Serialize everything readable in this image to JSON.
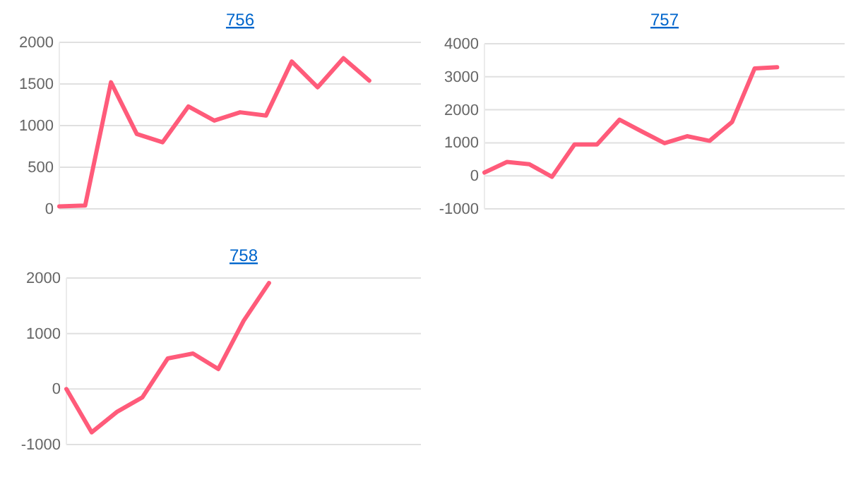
{
  "chart_data": [
    {
      "type": "line",
      "title": "756",
      "categories": [
        null,
        null,
        null,
        null,
        null,
        null,
        null,
        null,
        null,
        null,
        null,
        null,
        null,
        null,
        null
      ],
      "series": [
        {
          "color": "#ff5b7a",
          "values": [
            30,
            40,
            1520,
            900,
            800,
            1230,
            1060,
            1160,
            1120,
            1770,
            1460,
            1810,
            1540,
            null,
            null
          ]
        }
      ],
      "ylim": [
        0,
        2000
      ],
      "yticks": [
        0,
        500,
        1000,
        1500,
        2000
      ],
      "grid": "y",
      "tick_labels": "y",
      "marker": "none"
    },
    {
      "type": "line",
      "title": "757",
      "categories": [
        null,
        null,
        null,
        null,
        null,
        null,
        null,
        null,
        null,
        null,
        null,
        null,
        null,
        null,
        null,
        null,
        null
      ],
      "series": [
        {
          "color": "#ff5b7a",
          "values": [
            100,
            420,
            350,
            -30,
            950,
            950,
            1700,
            1340,
            990,
            1200,
            1060,
            1630,
            3250,
            3290,
            null,
            null,
            null
          ]
        }
      ],
      "ylim": [
        -1000,
        4000
      ],
      "yticks": [
        -1000,
        0,
        1000,
        2000,
        3000,
        4000
      ],
      "grid": "y",
      "tick_labels": "y",
      "marker": "none"
    },
    {
      "type": "line",
      "title": "758",
      "categories": [
        null,
        null,
        null,
        null,
        null,
        null,
        null,
        null,
        null,
        null,
        null,
        null,
        null,
        null,
        null
      ],
      "series": [
        {
          "color": "#ff5b7a",
          "values": [
            0,
            -780,
            -410,
            -150,
            550,
            640,
            360,
            1230,
            1910,
            null,
            null,
            null,
            null,
            null,
            null
          ]
        }
      ],
      "ylim": [
        -1000,
        2000
      ],
      "yticks": [
        -1000,
        0,
        1000,
        2000
      ],
      "grid": "y",
      "tick_labels": "y",
      "marker": "none"
    }
  ]
}
